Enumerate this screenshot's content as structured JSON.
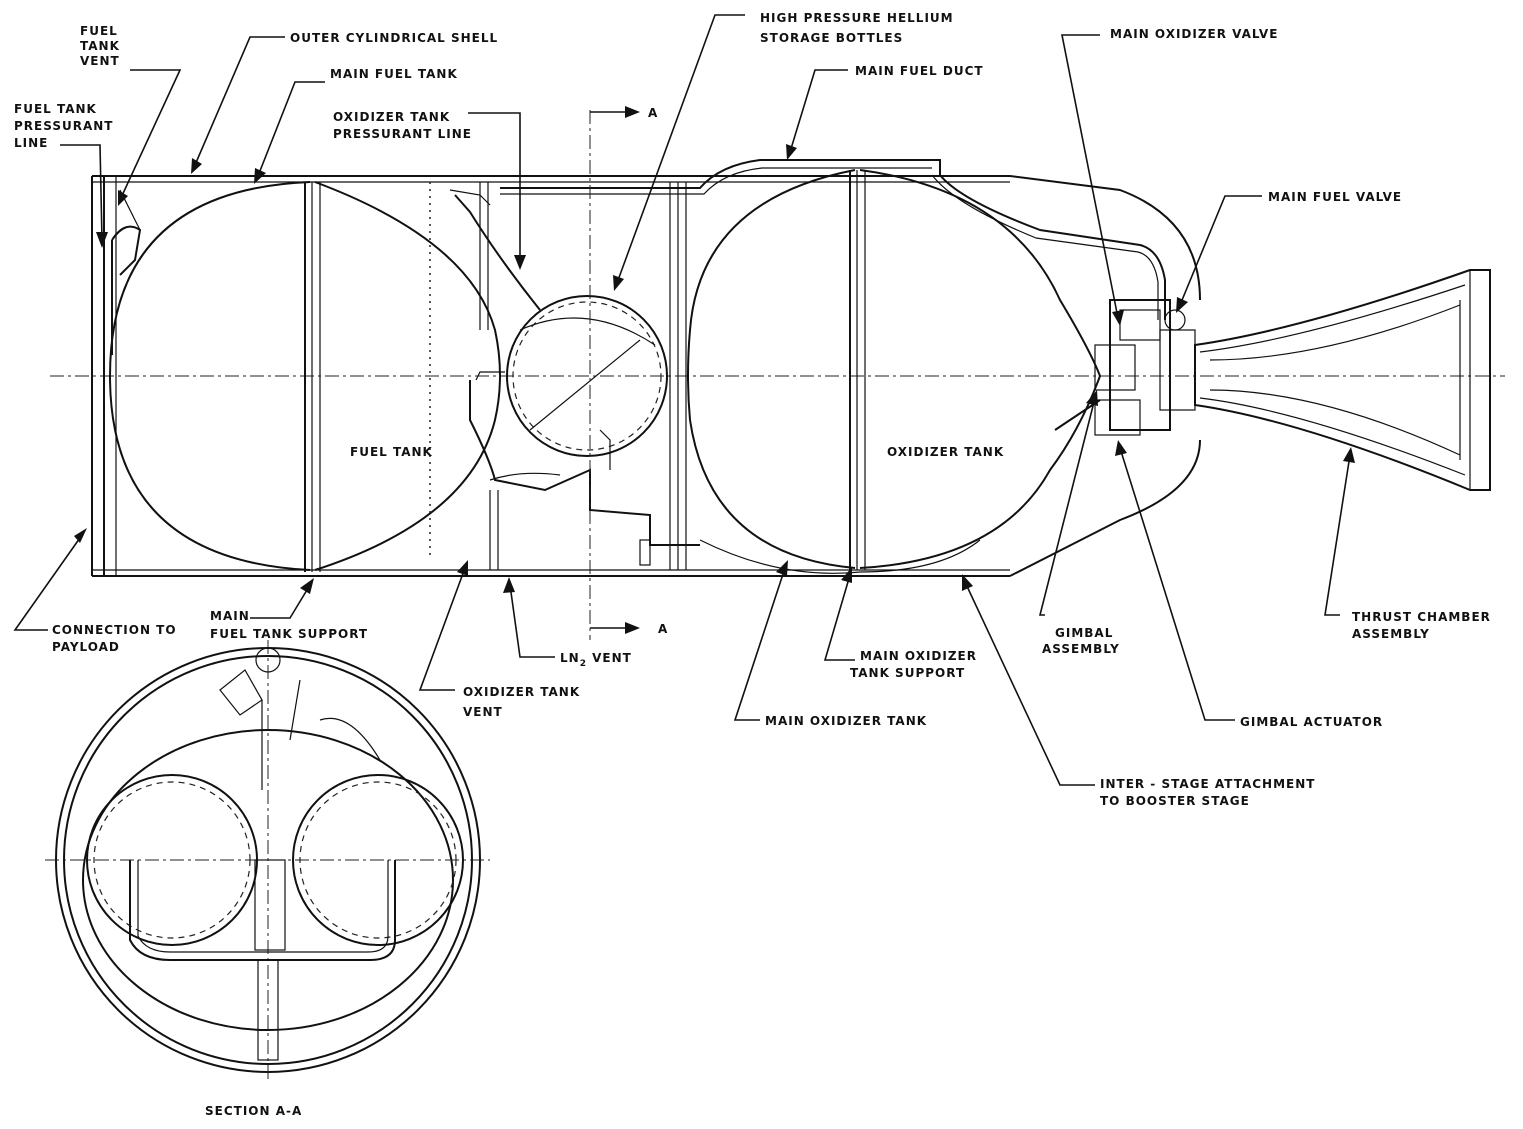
{
  "labels": {
    "fuel_tank_vent": [
      "FUEL",
      "TANK",
      "VENT"
    ],
    "fuel_tank_pressurant_line": [
      "FUEL TANK",
      "PRESSURANT",
      "LINE"
    ],
    "outer_cylindrical_shell": "OUTER CYLINDRICAL SHELL",
    "main_fuel_tank": "MAIN FUEL TANK",
    "oxidizer_tank_pressurant_line": [
      "OXIDIZER TANK",
      "PRESSURANT LINE"
    ],
    "high_pressure_helium": [
      "HIGH PRESSURE HELLIUM",
      "STORAGE BOTTLES"
    ],
    "main_fuel_duct": "MAIN FUEL DUCT",
    "main_oxidizer_valve": "MAIN OXIDIZER VALVE",
    "main_fuel_valve": "MAIN FUEL VALVE",
    "fuel_tank": "FUEL TANK",
    "oxidizer_tank": "OXIDIZER TANK",
    "connection_to_payload": [
      "CONNECTION TO",
      "PAYLOAD"
    ],
    "main_fuel_tank_support": [
      "MAIN",
      "FUEL TANK SUPPORT"
    ],
    "ln2_vent": {
      "main": "LN",
      "sub": "2",
      "rest": " VENT"
    },
    "oxidizer_tank_vent": [
      "OXIDIZER TANK",
      "VENT"
    ],
    "main_oxidizer_tank_support": [
      "MAIN OXIDIZER",
      "TANK SUPPORT"
    ],
    "main_oxidizer_tank": "MAIN OXIDIZER TANK",
    "inter_stage_attachment": [
      "INTER - STAGE ATTACHMENT",
      "TO BOOSTER STAGE"
    ],
    "gimbal_assembly": [
      "GIMBAL",
      "ASSEMBLY"
    ],
    "gimbal_actuator": "GIMBAL ACTUATOR",
    "thrust_chamber_assembly": [
      "THRUST CHAMBER",
      "ASSEMBLY"
    ],
    "section_marker_top": "A",
    "section_marker_bottom": "A",
    "section_caption": "SECTION A-A"
  }
}
